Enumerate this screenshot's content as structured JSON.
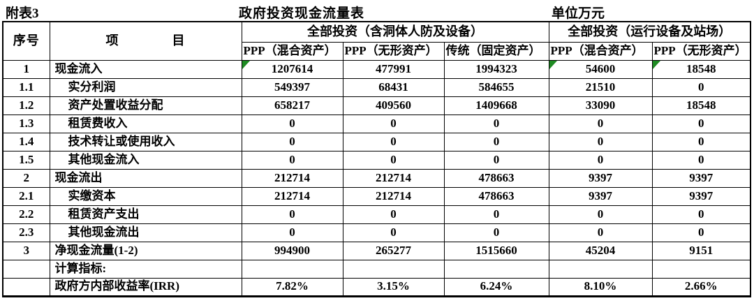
{
  "page": {
    "annex_label": "附表3",
    "title": "政府投资现金流量表",
    "unit_label": "单位万元"
  },
  "table": {
    "marker_color": "#1e8b22",
    "marker_icon": "excel-flag-triangle",
    "header": {
      "col_index": "序号",
      "col_item": "项　　　　目",
      "group1": "全部投资（含洞体人防及设备）",
      "group2": "全部投资（运行设备及站场）",
      "subcols": [
        "PPP（混合资产）",
        "PPP（无形资产）",
        "传统（固定资产）",
        "PPP（混合资产）",
        "PPP（无形资产）"
      ]
    },
    "rows": [
      {
        "no": "1",
        "item": "现金流入",
        "indent": false,
        "values": [
          "1207614",
          "477991",
          "1994323",
          "54600",
          "18548"
        ],
        "markers": [
          0,
          3,
          4
        ]
      },
      {
        "no": "1.1",
        "item": "实分利润",
        "indent": true,
        "values": [
          "549397",
          "68431",
          "584655",
          "21510",
          "0"
        ]
      },
      {
        "no": "1.2",
        "item": "资产处置收益分配",
        "indent": true,
        "values": [
          "658217",
          "409560",
          "1409668",
          "33090",
          "18548"
        ]
      },
      {
        "no": "1.3",
        "item": "租赁费收入",
        "indent": true,
        "values": [
          "0",
          "0",
          "0",
          "0",
          "0"
        ]
      },
      {
        "no": "1.4",
        "item": "技术转让或使用收入",
        "indent": true,
        "values": [
          "0",
          "0",
          "0",
          "0",
          "0"
        ]
      },
      {
        "no": "1.5",
        "item": "其他现金流入",
        "indent": true,
        "values": [
          "0",
          "0",
          "0",
          "0",
          "0"
        ]
      },
      {
        "no": "2",
        "item": "现金流出",
        "indent": false,
        "values": [
          "212714",
          "212714",
          "478663",
          "9397",
          "9397"
        ]
      },
      {
        "no": "2.1",
        "item": "实缴资本",
        "indent": true,
        "values": [
          "212714",
          "212714",
          "478663",
          "9397",
          "9397"
        ]
      },
      {
        "no": "2.2",
        "item": "租赁资产支出",
        "indent": true,
        "values": [
          "0",
          "0",
          "0",
          "0",
          "0"
        ]
      },
      {
        "no": "2.3",
        "item": "其他现金流出",
        "indent": true,
        "values": [
          "0",
          "0",
          "0",
          "0",
          "0"
        ]
      },
      {
        "no": "3",
        "item": "净现金流量(1-2)",
        "indent": false,
        "values": [
          "994900",
          "265277",
          "1515660",
          "45204",
          "9151"
        ]
      },
      {
        "no": "",
        "item": "计算指标:",
        "indent": false,
        "values": [
          "",
          "",
          "",
          "",
          ""
        ]
      },
      {
        "no": "",
        "item": "政府方内部收益率(IRR)",
        "indent": false,
        "values": [
          "7.82%",
          "3.15%",
          "6.24%",
          "8.10%",
          "2.66%"
        ]
      }
    ]
  }
}
